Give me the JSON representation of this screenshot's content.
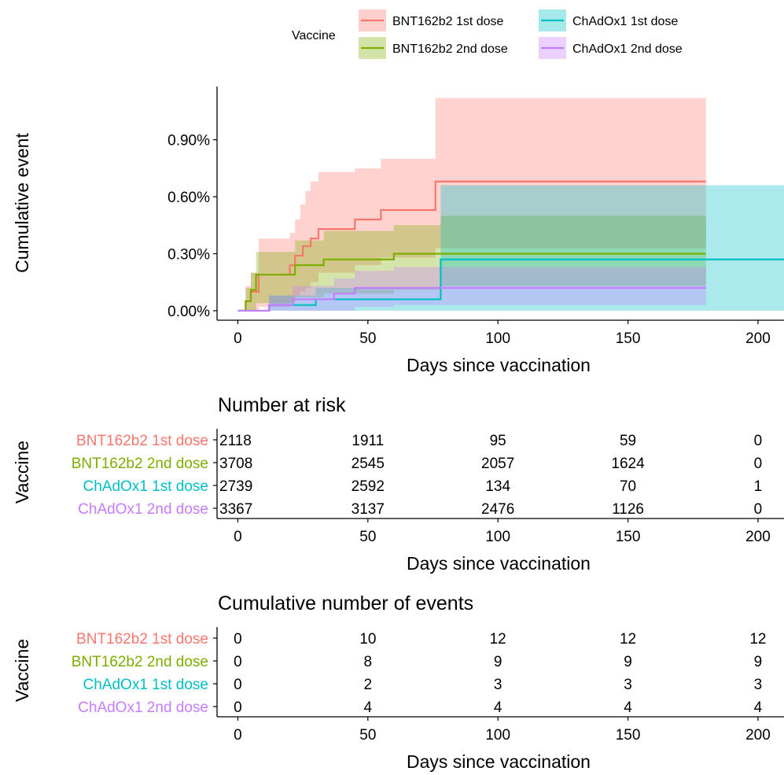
{
  "legend": {
    "title": "Vaccine",
    "entries": [
      "BNT162b2 1st dose",
      "BNT162b2 2nd dose",
      "ChAdOx1 1st dose",
      "ChAdOx1 2nd dose"
    ]
  },
  "colors": {
    "BNT162b2 1st dose": "#F8766D",
    "BNT162b2 2nd dose": "#7CAE00",
    "ChAdOx1 1st dose": "#00BFC4",
    "ChAdOx1 2nd dose": "#C77CFF"
  },
  "chart_data": [
    {
      "type": "line",
      "xlabel": "Days since vaccination",
      "ylabel": "Cumulative event",
      "xlim": [
        -8,
        210
      ],
      "ylim": [
        -0.0005,
        0.0118
      ],
      "x_ticks": [
        0,
        50,
        100,
        150,
        200
      ],
      "y_ticks": [
        0,
        0.003,
        0.006,
        0.009
      ],
      "y_tick_labels": [
        "0.00%",
        "0.30%",
        "0.60%",
        "0.90%"
      ],
      "step": true,
      "series": [
        {
          "name": "BNT162b2 1st dose",
          "points": [
            [
              0,
              0
            ],
            [
              3,
              0.0005
            ],
            [
              5,
              0.001
            ],
            [
              8,
              0.0019
            ],
            [
              20,
              0.0024
            ],
            [
              22,
              0.0029
            ],
            [
              25,
              0.0034
            ],
            [
              28,
              0.0038
            ],
            [
              31,
              0.0043
            ],
            [
              45,
              0.0048
            ],
            [
              55,
              0.0053
            ],
            [
              76,
              0.0068
            ],
            [
              180,
              0.0068
            ]
          ],
          "band": [
            [
              0,
              0,
              0
            ],
            [
              3,
              0,
              0.0013
            ],
            [
              5,
              0,
              0.002
            ],
            [
              8,
              0.0002,
              0.0038
            ],
            [
              20,
              0.0004,
              0.0041
            ],
            [
              22,
              0.0008,
              0.0048
            ],
            [
              24,
              0.001,
              0.0056
            ],
            [
              26,
              0.0012,
              0.0063
            ],
            [
              28,
              0.0015,
              0.0068
            ],
            [
              31,
              0.002,
              0.0073
            ],
            [
              45,
              0.0024,
              0.0075
            ],
            [
              55,
              0.0028,
              0.008
            ],
            [
              76,
              0.0033,
              0.0112
            ],
            [
              180,
              0.0033,
              0.0112
            ]
          ]
        },
        {
          "name": "BNT162b2 2nd dose",
          "points": [
            [
              0,
              0
            ],
            [
              3,
              0.0005
            ],
            [
              5,
              0.0011
            ],
            [
              7,
              0.0019
            ],
            [
              22,
              0.0024
            ],
            [
              33,
              0.0027
            ],
            [
              60,
              0.003
            ],
            [
              180,
              0.003
            ]
          ],
          "band": [
            [
              0,
              0,
              0
            ],
            [
              3,
              0,
              0.0012
            ],
            [
              5,
              0,
              0.002
            ],
            [
              7,
              0.0004,
              0.0031
            ],
            [
              22,
              0.0007,
              0.0037
            ],
            [
              33,
              0.0009,
              0.0042
            ],
            [
              60,
              0.0011,
              0.0045
            ],
            [
              78,
              0.0013,
              0.005
            ],
            [
              180,
              0.0013,
              0.005
            ]
          ]
        },
        {
          "name": "ChAdOx1 1st dose",
          "points": [
            [
              0,
              0
            ],
            [
              12,
              0.0003
            ],
            [
              30,
              0.0006
            ],
            [
              78,
              0.0027
            ],
            [
              210,
              0.0027
            ]
          ],
          "band": [
            [
              0,
              0,
              0
            ],
            [
              12,
              0,
              0.0008
            ],
            [
              30,
              0,
              0.0012
            ],
            [
              78,
              0,
              0.0066
            ],
            [
              210,
              0,
              0.0066
            ]
          ]
        },
        {
          "name": "ChAdOx1 2nd dose",
          "points": [
            [
              0,
              0
            ],
            [
              12,
              0.0003
            ],
            [
              21,
              0.0006
            ],
            [
              37,
              0.0009
            ],
            [
              45,
              0.0012
            ],
            [
              180,
              0.0012
            ]
          ],
          "band": [
            [
              0,
              0,
              0
            ],
            [
              12,
              0,
              0.0008
            ],
            [
              21,
              0,
              0.0013
            ],
            [
              37,
              0,
              0.0017
            ],
            [
              45,
              0.0002,
              0.0021
            ],
            [
              60,
              0.0003,
              0.0023
            ],
            [
              180,
              0.0003,
              0.0023
            ]
          ]
        }
      ]
    },
    {
      "type": "table",
      "title": "Number at risk",
      "ylabel": "Vaccine",
      "xlabel": "Days since vaccination",
      "x_ticks": [
        0,
        50,
        100,
        150,
        200
      ],
      "rows": [
        {
          "label": "BNT162b2 1st dose",
          "values": [
            "2118",
            "1911",
            "95",
            "59",
            "0"
          ]
        },
        {
          "label": "BNT162b2 2nd dose",
          "values": [
            "3708",
            "2545",
            "2057",
            "1624",
            "0"
          ]
        },
        {
          "label": "ChAdOx1 1st dose",
          "values": [
            "2739",
            "2592",
            "134",
            "70",
            "1"
          ]
        },
        {
          "label": "ChAdOx1 2nd dose",
          "values": [
            "3367",
            "3137",
            "2476",
            "1126",
            "0"
          ]
        }
      ]
    },
    {
      "type": "table",
      "title": "Cumulative number of events",
      "ylabel": "Vaccine",
      "xlabel": "Days since vaccination",
      "x_ticks": [
        0,
        50,
        100,
        150,
        200
      ],
      "rows": [
        {
          "label": "BNT162b2 1st dose",
          "values": [
            "0",
            "10",
            "12",
            "12",
            "12"
          ]
        },
        {
          "label": "BNT162b2 2nd dose",
          "values": [
            "0",
            "8",
            "9",
            "9",
            "9"
          ]
        },
        {
          "label": "ChAdOx1 1st dose",
          "values": [
            "0",
            "2",
            "3",
            "3",
            "3"
          ]
        },
        {
          "label": "ChAdOx1 2nd dose",
          "values": [
            "0",
            "4",
            "4",
            "4",
            "4"
          ]
        }
      ]
    }
  ]
}
